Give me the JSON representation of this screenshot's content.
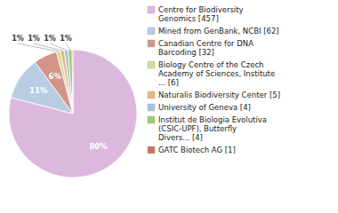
{
  "chart_data": {
    "type": "pie",
    "categories": [
      "Centre for Biodiversity\nGenomics [457]",
      "Mined from GenBank, NCBI [62]",
      "Canadian Centre for DNA\nBarcoding [32]",
      "Biology Centre of the Czech\nAcademy of Sciences, Institute\n... [6]",
      "Naturalis Biodiversity Center [5]",
      "University of Geneva [4]",
      "Institut de Biologia Evolutiva\n(CSIC-UPF), Butterfly\nDivers... [4]",
      "GATC Biotech AG [1]"
    ],
    "values": [
      80,
      11,
      6,
      1,
      1,
      1,
      1,
      0.2
    ],
    "value_labels": [
      "80%",
      "11%",
      "6%",
      "1%",
      "1%",
      "1%",
      "1%",
      null
    ],
    "colors": [
      "#ddb8dd",
      "#b8cce4",
      "#d4948a",
      "#d4dc9c",
      "#e8b87c",
      "#a8c4e0",
      "#a0c870",
      "#cc7060"
    ],
    "data_labels": true,
    "legend": "right"
  }
}
